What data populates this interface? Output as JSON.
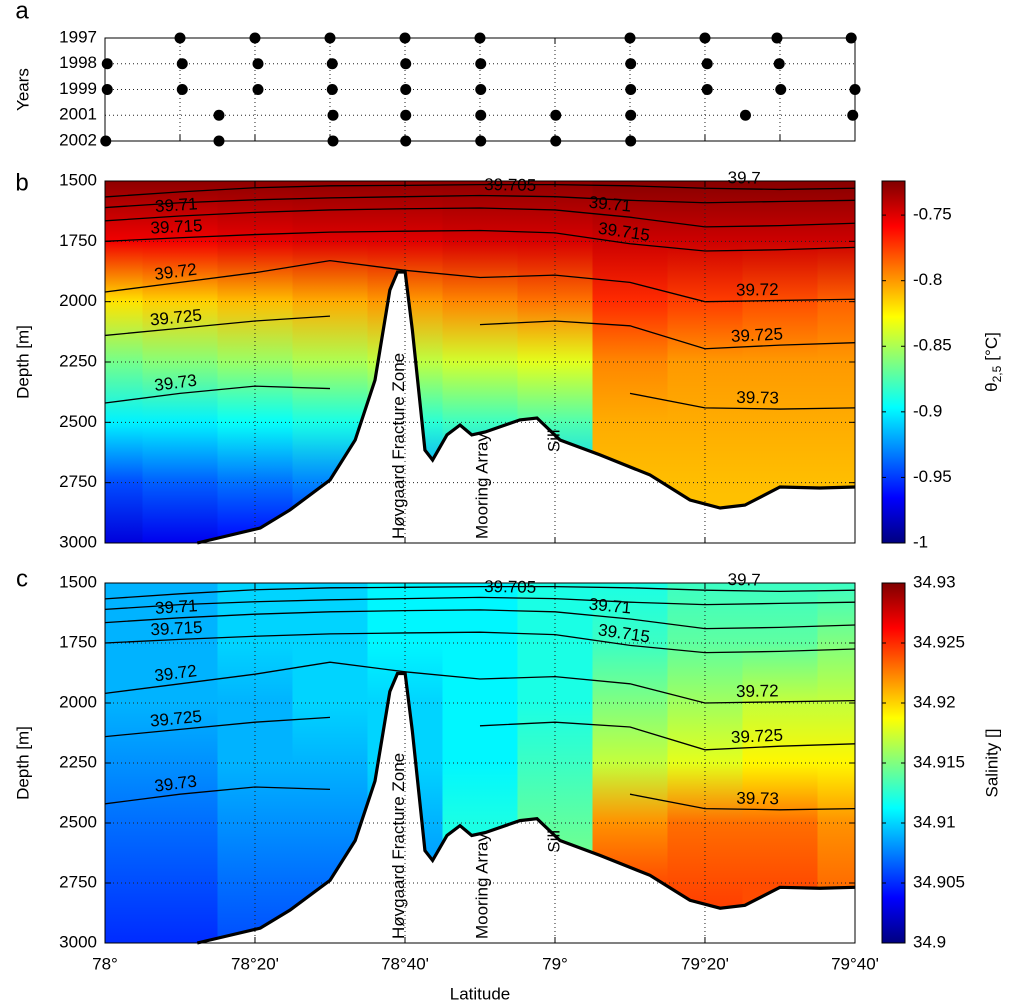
{
  "chart_data": [
    {
      "type": "stations",
      "panel": "a",
      "ylabel": "Years",
      "categories": [
        "1997",
        "1998",
        "1999",
        "2001",
        "2002"
      ],
      "x": [
        [
          78.1667,
          78.3333,
          78.5,
          78.6667,
          78.8333,
          79.1667,
          79.3333,
          79.4933,
          79.6583
        ],
        [
          78.005,
          78.1717,
          78.34,
          78.505,
          78.6683,
          78.835,
          79.1683,
          79.3383,
          79.4983
        ],
        [
          78.005,
          78.1717,
          78.34,
          78.505,
          78.6683,
          78.835,
          79.1683,
          79.3383,
          79.5017,
          79.6667
        ],
        [
          78.2533,
          78.5067,
          78.6683,
          78.835,
          79.0017,
          79.1683,
          79.4233,
          79.6617
        ],
        [
          78.0017,
          78.2533,
          78.5067,
          78.6683,
          78.835,
          79.0017,
          79.1683
        ]
      ],
      "xlim": [
        78,
        79.6667
      ],
      "xticks": [
        78,
        78.1667,
        78.3333,
        78.5,
        78.6667,
        78.8333,
        79,
        79.1667,
        79.3333,
        79.5,
        79.6667
      ],
      "grid": true
    },
    {
      "type": "section",
      "panel": "b",
      "ylabel": "Depth [m]",
      "x": [
        78,
        78.1667,
        78.3333,
        78.5,
        78.6667,
        78.8333,
        79,
        79.1667,
        79.3333,
        79.5,
        79.6667
      ],
      "depths": [
        1500,
        1750,
        2000,
        2250,
        2500,
        2750,
        3000
      ],
      "values": [
        [
          -0.728,
          -0.755,
          -0.82,
          -0.865,
          -0.9,
          -0.945,
          -0.975
        ],
        [
          -0.728,
          -0.755,
          -0.815,
          -0.86,
          -0.9,
          -0.94,
          -0.97
        ],
        [
          -0.728,
          -0.752,
          -0.81,
          -0.855,
          -0.895,
          -0.935,
          -0.965
        ],
        [
          -0.728,
          -0.75,
          -0.805,
          -0.85,
          -0.89,
          -0.93,
          -0.96
        ],
        [
          -0.728,
          -0.75,
          -0.8,
          -0.845,
          -0.885,
          -0.925,
          -0.955
        ],
        [
          -0.728,
          -0.748,
          -0.795,
          -0.84,
          -0.88,
          -0.92,
          -0.95
        ],
        [
          -0.728,
          -0.748,
          -0.79,
          -0.835,
          -0.875,
          -0.91,
          -0.94
        ],
        [
          -0.726,
          -0.745,
          -0.77,
          -0.795,
          -0.805,
          -0.81,
          -0.812
        ],
        [
          -0.726,
          -0.745,
          -0.775,
          -0.8,
          -0.805,
          -0.81,
          -0.812
        ],
        [
          -0.726,
          -0.745,
          -0.78,
          -0.8,
          -0.805,
          -0.81,
          -0.812
        ],
        [
          -0.726,
          -0.745,
          -0.785,
          -0.8,
          -0.805,
          -0.81,
          -0.812
        ]
      ],
      "ylim": [
        1500,
        3000
      ],
      "yticks": [
        1500,
        1750,
        2000,
        2250,
        2500,
        2750,
        3000
      ],
      "y_reversed": true,
      "xlim": [
        78,
        79.6667
      ],
      "xticks": [
        78,
        78.3333,
        78.6667,
        79,
        79.3333,
        79.6667
      ],
      "grid": true,
      "contours": [
        {
          "level": 39.7,
          "values": [
            1566,
            1545,
            1528,
            1520,
            1518,
            1515,
            1515,
            1520,
            1530,
            1535,
            1530
          ]
        },
        {
          "level": 39.705,
          "values": [
            1610,
            1590,
            1578,
            1570,
            1565,
            1560,
            1565,
            1580,
            1590,
            1585,
            1580
          ]
        },
        {
          "level": 39.71,
          "values": [
            1665,
            1645,
            1630,
            1620,
            1615,
            1612,
            1620,
            1650,
            1690,
            1685,
            1675
          ]
        },
        {
          "level": 39.715,
          "values": [
            1750,
            1735,
            1722,
            1712,
            1708,
            1705,
            1715,
            1760,
            1790,
            1785,
            1775
          ]
        },
        {
          "level": 39.72,
          "values": [
            1960,
            1920,
            1880,
            1830,
            1870,
            1900,
            1890,
            1920,
            2000,
            1995,
            1990
          ]
        },
        {
          "level": 39.725,
          "values": [
            2140,
            2110,
            2080,
            2060,
            null,
            2095,
            2080,
            2100,
            2195,
            2180,
            2170
          ]
        },
        {
          "level": 39.73,
          "values": [
            2420,
            2380,
            2350,
            2360,
            null,
            null,
            null,
            2380,
            2440,
            2445,
            2440
          ]
        }
      ],
      "bottom": {
        "x": [
          78.205,
          78.345,
          78.411,
          78.5,
          78.556,
          78.6,
          78.633,
          78.65,
          78.667,
          78.683,
          78.711,
          78.728,
          78.76,
          78.789,
          78.815,
          78.845,
          78.922,
          78.96,
          79.011,
          79.1,
          79.211,
          79.3,
          79.367,
          79.422,
          79.5,
          79.589,
          79.6667
        ],
        "depth": [
          3000,
          2938,
          2863,
          2739,
          2573,
          2325,
          1952,
          1877,
          1877,
          2117,
          2615,
          2656,
          2552,
          2511,
          2552,
          2540,
          2490,
          2482,
          2573,
          2635,
          2718,
          2822,
          2855,
          2843,
          2768,
          2772,
          2768
        ]
      },
      "annotations": [
        "Høvgaard Fracture Zone",
        "Mooring Array",
        "Sill"
      ],
      "colormap": "jet",
      "clim": [
        -1,
        -0.724
      ],
      "cticks": [
        -1,
        -0.95,
        -0.9,
        -0.85,
        -0.8,
        -0.75
      ],
      "colorbar_label": {
        "symbol": "θ",
        "subscript": "2,5",
        "unit": "[°C]"
      }
    },
    {
      "type": "section",
      "panel": "c",
      "ylabel": "Depth [m]",
      "xlabel": "Latitude",
      "x": [
        78,
        78.1667,
        78.3333,
        78.5,
        78.6667,
        78.8333,
        79,
        79.1667,
        79.3333,
        79.5,
        79.6667
      ],
      "depths": [
        1500,
        1750,
        2000,
        2250,
        2500,
        2750,
        3000
      ],
      "values": [
        [
          34.909,
          34.909,
          34.909,
          34.908,
          34.907,
          34.906,
          34.905
        ],
        [
          34.909,
          34.909,
          34.909,
          34.908,
          34.907,
          34.906,
          34.905
        ],
        [
          34.91,
          34.91,
          34.909,
          34.909,
          34.908,
          34.907,
          34.906
        ],
        [
          34.91,
          34.91,
          34.91,
          34.909,
          34.908,
          34.907,
          34.906
        ],
        [
          34.911,
          34.911,
          34.91,
          34.91,
          34.909,
          34.908,
          34.907
        ],
        [
          34.911,
          34.911,
          34.911,
          34.911,
          34.912,
          34.912,
          34.912
        ],
        [
          34.912,
          34.912,
          34.912,
          34.913,
          34.914,
          34.915,
          34.916
        ],
        [
          34.912,
          34.913,
          34.915,
          34.917,
          34.922,
          34.924,
          34.924
        ],
        [
          34.913,
          34.914,
          34.916,
          34.918,
          34.923,
          34.924,
          34.925
        ],
        [
          34.913,
          34.914,
          34.917,
          34.919,
          34.923,
          34.924,
          34.924
        ],
        [
          34.913,
          34.915,
          34.917,
          34.919,
          34.922,
          34.923,
          34.923
        ]
      ],
      "ylim": [
        1500,
        3000
      ],
      "yticks": [
        1500,
        1750,
        2000,
        2250,
        2500,
        2750,
        3000
      ],
      "y_reversed": true,
      "xlim": [
        78,
        79.6667
      ],
      "xticks": [
        {
          "value": 78,
          "label": "78°"
        },
        {
          "value": 78.3333,
          "label": "78°20'"
        },
        {
          "value": 78.6667,
          "label": "78°40'"
        },
        {
          "value": 79,
          "label": "79°"
        },
        {
          "value": 79.3333,
          "label": "79°20'"
        },
        {
          "value": 79.6667,
          "label": "79°40'"
        }
      ],
      "grid": true,
      "contours": [
        {
          "level": 39.7,
          "values": [
            1566,
            1545,
            1528,
            1520,
            1518,
            1515,
            1515,
            1520,
            1530,
            1535,
            1530
          ]
        },
        {
          "level": 39.705,
          "values": [
            1610,
            1590,
            1578,
            1570,
            1565,
            1560,
            1565,
            1580,
            1590,
            1585,
            1580
          ]
        },
        {
          "level": 39.71,
          "values": [
            1665,
            1645,
            1630,
            1620,
            1615,
            1612,
            1620,
            1650,
            1690,
            1685,
            1675
          ]
        },
        {
          "level": 39.715,
          "values": [
            1750,
            1735,
            1722,
            1712,
            1708,
            1705,
            1715,
            1760,
            1790,
            1785,
            1775
          ]
        },
        {
          "level": 39.72,
          "values": [
            1960,
            1920,
            1880,
            1830,
            1870,
            1900,
            1890,
            1920,
            2000,
            1995,
            1990
          ]
        },
        {
          "level": 39.725,
          "values": [
            2140,
            2110,
            2080,
            2060,
            null,
            2095,
            2080,
            2100,
            2195,
            2180,
            2170
          ]
        },
        {
          "level": 39.73,
          "values": [
            2420,
            2380,
            2350,
            2360,
            null,
            null,
            null,
            2380,
            2440,
            2445,
            2440
          ]
        }
      ],
      "bottom": {
        "x": [
          78.205,
          78.345,
          78.411,
          78.5,
          78.556,
          78.6,
          78.633,
          78.65,
          78.667,
          78.683,
          78.711,
          78.728,
          78.76,
          78.789,
          78.815,
          78.845,
          78.922,
          78.96,
          79.011,
          79.1,
          79.211,
          79.3,
          79.367,
          79.422,
          79.5,
          79.589,
          79.6667
        ],
        "depth": [
          3000,
          2938,
          2863,
          2739,
          2573,
          2325,
          1952,
          1877,
          1877,
          2117,
          2615,
          2656,
          2552,
          2511,
          2552,
          2540,
          2490,
          2482,
          2573,
          2635,
          2718,
          2822,
          2855,
          2843,
          2768,
          2772,
          2768
        ]
      },
      "annotations": [
        "Høvgaard Fracture Zone",
        "Mooring Array",
        "Sill"
      ],
      "colormap": "jet",
      "clim": [
        34.9,
        34.93
      ],
      "cticks": [
        34.9,
        34.905,
        34.91,
        34.915,
        34.92,
        34.925,
        34.93
      ],
      "colorbar_label": "Salinity []"
    }
  ]
}
